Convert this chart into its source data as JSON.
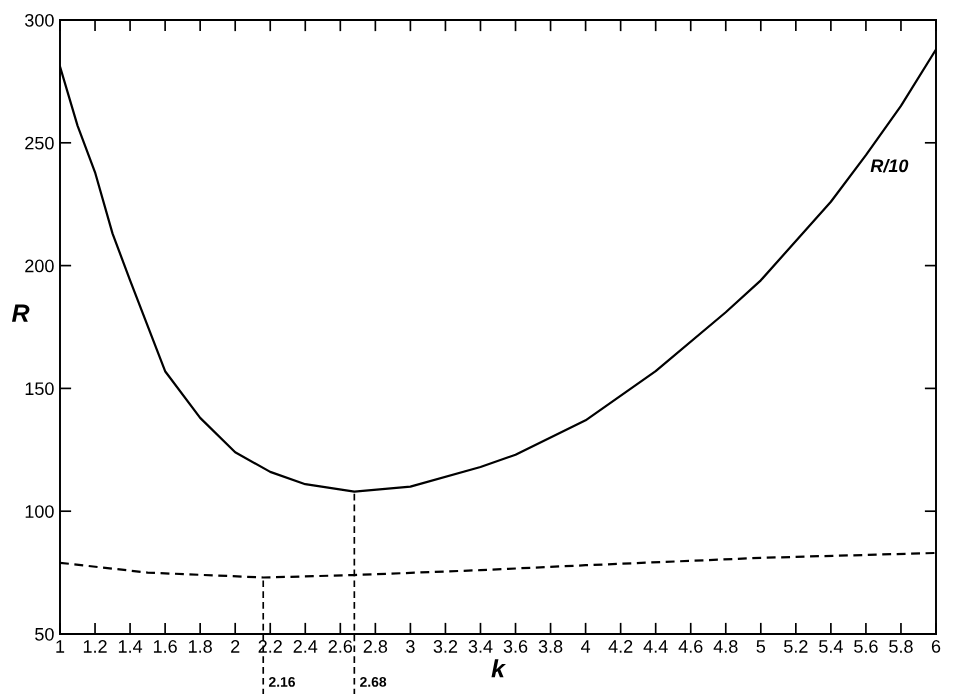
{
  "chart_data": {
    "type": "line",
    "xlabel": "k",
    "ylabel": "R",
    "xlim": [
      1,
      6
    ],
    "ylim": [
      50,
      300
    ],
    "xticks": [
      1,
      1.2,
      1.4,
      1.6,
      1.8,
      2,
      2.2,
      2.4,
      2.6,
      2.8,
      3,
      3.2,
      3.4,
      3.6,
      3.8,
      4,
      4.2,
      4.4,
      4.6,
      4.8,
      5,
      5.2,
      5.4,
      5.6,
      5.8,
      6
    ],
    "yticks": [
      50,
      100,
      150,
      200,
      250,
      300
    ],
    "grid": false,
    "legend": false,
    "marker": "none",
    "series": [
      {
        "color": "#000000",
        "line_style": "solid",
        "x": [
          1,
          1.1,
          1.2,
          1.3,
          1.4,
          1.6,
          1.8,
          2,
          2.2,
          2.4,
          2.68,
          3,
          3.4,
          3.6,
          4,
          4.4,
          4.8,
          5,
          5.4,
          5.6,
          5.8,
          6
        ],
        "values": [
          281,
          257,
          238,
          213,
          194,
          157,
          138,
          124,
          116,
          111,
          108,
          110,
          118,
          123,
          137,
          157,
          181,
          194,
          226,
          245,
          265,
          288
        ]
      },
      {
        "color": "#000000",
        "line_style": "dashed",
        "x": [
          1,
          1.5,
          2.16,
          2.68,
          3.4,
          4,
          5,
          6
        ],
        "values": [
          79,
          75,
          73,
          74,
          76,
          78,
          81,
          83
        ]
      }
    ],
    "ref_lines": [
      {
        "axis": "x",
        "value": 2.16,
        "label": "2.16",
        "line_style": "dashed"
      },
      {
        "axis": "x",
        "value": 2.68,
        "label": "2.68",
        "line_style": "dashed"
      }
    ],
    "annotations": [
      "R/10"
    ]
  }
}
